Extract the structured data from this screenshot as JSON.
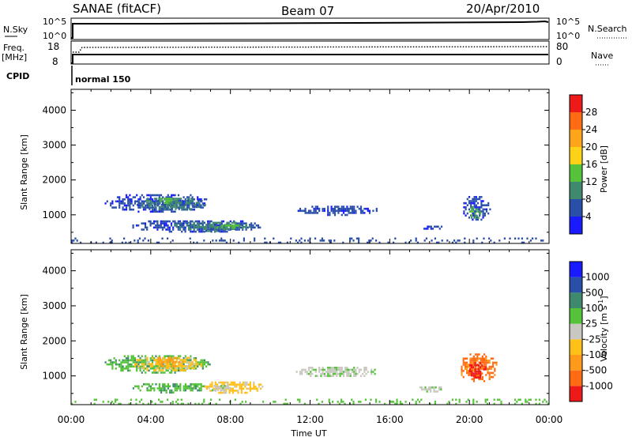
{
  "header": {
    "radar": "SANAE (fitACF)",
    "beam": "Beam 07",
    "date": "20/Apr/2010"
  },
  "strip": {
    "nsky_label": "N.Sky",
    "nsky_ticks": [
      "10^5",
      "10^0"
    ],
    "nsearch_label": "N.Search",
    "nsearch_ticks": [
      "10^5",
      "10^0"
    ],
    "freq_label_1": "Freq.",
    "freq_label_2": "[MHz]",
    "freq_ticks": [
      "18",
      "8"
    ],
    "nave_label": "Nave",
    "nave_ticks": [
      "80",
      "0"
    ],
    "cpid_label": "CPID",
    "cpid_value": "normal 150"
  },
  "axes": {
    "ylabel": "Slant Range [km]",
    "xlabel": "Time UT",
    "x_ticks": [
      "00:00",
      "04:00",
      "08:00",
      "12:00",
      "16:00",
      "20:00",
      "00:00"
    ],
    "y_ticks": [
      "1000",
      "2000",
      "3000",
      "4000"
    ]
  },
  "colorbars": {
    "power": {
      "label": "Power [dB]",
      "ticks": [
        "4",
        "8",
        "12",
        "16",
        "20",
        "24",
        "28"
      ],
      "colors": [
        "#1a1aff",
        "#2a4fa8",
        "#3f8a6e",
        "#55c23a",
        "#ffd21a",
        "#ffa51a",
        "#ff6a14",
        "#ee1a1a"
      ]
    },
    "velocity": {
      "label_main": "Velocity  [m s",
      "label_sup": "-1",
      "label_end": "]",
      "ticks": [
        "1000",
        "500",
        "100",
        "25",
        "-25",
        "-100",
        "-500",
        "-1000"
      ],
      "colors": [
        "#1a1aff",
        "#2a4fa8",
        "#3f8a6e",
        "#55c23a",
        "#c8c8c0",
        "#ffc01a",
        "#ff9a1a",
        "#ff6a14",
        "#ee1a1a"
      ]
    }
  },
  "chart_data": [
    {
      "type": "heatmap",
      "name": "power",
      "x_unit": "hours UT",
      "y_unit": "km",
      "xlim": [
        0,
        24
      ],
      "ylim": [
        180,
        4600
      ],
      "regions": [
        {
          "x0": 1.6,
          "x1": 7.0,
          "y0": 1100,
          "y1": 1650,
          "level": 1
        },
        {
          "x0": 3.2,
          "x1": 6.8,
          "y0": 1150,
          "y1": 1550,
          "level": 2
        },
        {
          "x0": 4.2,
          "x1": 5.2,
          "y0": 1350,
          "y1": 1550,
          "level": 3
        },
        {
          "x0": 2.9,
          "x1": 9.6,
          "y0": 520,
          "y1": 900,
          "level": 1
        },
        {
          "x0": 5.0,
          "x1": 9.0,
          "y0": 560,
          "y1": 860,
          "level": 2
        },
        {
          "x0": 7.2,
          "x1": 8.6,
          "y0": 600,
          "y1": 780,
          "level": 3
        },
        {
          "x0": 11.2,
          "x1": 15.4,
          "y0": 1020,
          "y1": 1320,
          "level": 1
        },
        {
          "x0": 17.6,
          "x1": 18.6,
          "y0": 560,
          "y1": 750,
          "level": 1
        },
        {
          "x0": 19.6,
          "x1": 21.0,
          "y0": 850,
          "y1": 1600,
          "level": 1
        },
        {
          "x0": 19.9,
          "x1": 20.6,
          "y0": 900,
          "y1": 1300,
          "level": 3
        },
        {
          "x0": 0.0,
          "x1": 24.0,
          "y0": 190,
          "y1": 350,
          "level": 1
        }
      ]
    },
    {
      "type": "heatmap",
      "name": "velocity",
      "x_unit": "hours UT",
      "y_unit": "km",
      "xlim": [
        0,
        24
      ],
      "ylim": [
        180,
        4600
      ],
      "regions": [
        {
          "x0": 1.6,
          "x1": 7.0,
          "y0": 1100,
          "y1": 1650,
          "level": 3
        },
        {
          "x0": 3.0,
          "x1": 6.6,
          "y0": 1150,
          "y1": 1600,
          "level": 5
        },
        {
          "x0": 4.0,
          "x1": 5.6,
          "y0": 1250,
          "y1": 1600,
          "level": 6
        },
        {
          "x0": 3.0,
          "x1": 7.0,
          "y0": 550,
          "y1": 850,
          "level": 3
        },
        {
          "x0": 6.6,
          "x1": 9.6,
          "y0": 520,
          "y1": 900,
          "level": 5
        },
        {
          "x0": 6.8,
          "x1": 8.0,
          "y0": 600,
          "y1": 800,
          "level": 4
        },
        {
          "x0": 11.2,
          "x1": 15.4,
          "y0": 980,
          "y1": 1320,
          "level": 4
        },
        {
          "x0": 17.4,
          "x1": 18.6,
          "y0": 560,
          "y1": 760,
          "level": 4
        },
        {
          "x0": 19.4,
          "x1": 21.4,
          "y0": 850,
          "y1": 1700,
          "level": 7
        },
        {
          "x0": 19.9,
          "x1": 20.8,
          "y0": 950,
          "y1": 1450,
          "level": 8
        },
        {
          "x0": 0.0,
          "x1": 24.0,
          "y0": 190,
          "y1": 350,
          "level": 3
        }
      ]
    }
  ]
}
